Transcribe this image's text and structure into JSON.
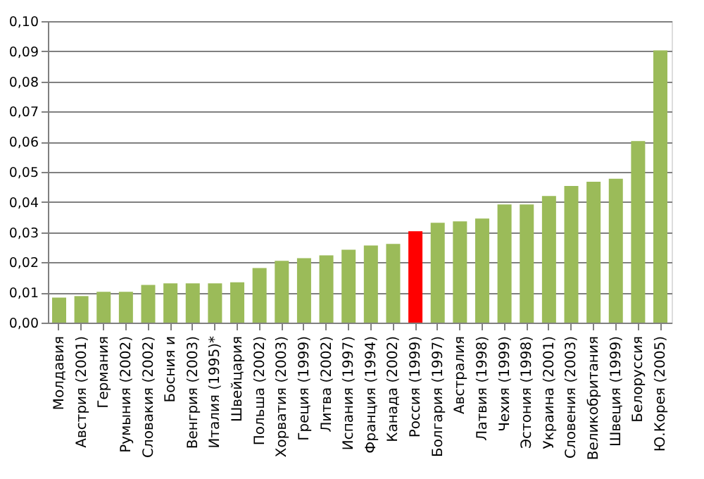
{
  "chart_data": {
    "type": "bar",
    "categories": [
      "Молдавия",
      "Австрия (2001)",
      "Германия",
      "Румыния (2002)",
      "Словакия (2002)",
      "Босния и",
      "Венгрия (2003)",
      "Италия (1995)*",
      "Швейцария",
      "Польша (2002)",
      "Хорватия (2003)",
      "Греция (1999)",
      "Литва (2002)",
      "Испания (1997)",
      "Франция (1994)",
      "Канада (2002)",
      "Россия (1999)",
      "Болгария (1997)",
      "Австралия",
      "Латвия (1998)",
      "Чехия (1999)",
      "Эстония (1998)",
      "Украина (2001)",
      "Словения (2003)",
      "Великобритания",
      "Швеция (1999)",
      "Белоруссия",
      "Ю.Корея (2005)"
    ],
    "values": [
      0.0083,
      0.0088,
      0.0102,
      0.0102,
      0.0125,
      0.013,
      0.013,
      0.013,
      0.0134,
      0.0181,
      0.0205,
      0.0214,
      0.0223,
      0.0242,
      0.0256,
      0.0261,
      0.0303,
      0.0331,
      0.0336,
      0.0345,
      0.0392,
      0.0392,
      0.042,
      0.0453,
      0.0467,
      0.0477,
      0.0602,
      0.0903
    ],
    "colors": [
      "#9bbb59",
      "#9bbb59",
      "#9bbb59",
      "#9bbb59",
      "#9bbb59",
      "#9bbb59",
      "#9bbb59",
      "#9bbb59",
      "#9bbb59",
      "#9bbb59",
      "#9bbb59",
      "#9bbb59",
      "#9bbb59",
      "#9bbb59",
      "#9bbb59",
      "#9bbb59",
      "#ff0000",
      "#9bbb59",
      "#9bbb59",
      "#9bbb59",
      "#9bbb59",
      "#9bbb59",
      "#9bbb59",
      "#9bbb59",
      "#9bbb59",
      "#9bbb59",
      "#9bbb59",
      "#9bbb59"
    ],
    "ylim": [
      0,
      0.1
    ],
    "yticks": [
      {
        "value": 0,
        "label": "0,00"
      },
      {
        "value": 0.01,
        "label": "0,01"
      },
      {
        "value": 0.02,
        "label": "0,02"
      },
      {
        "value": 0.03,
        "label": "0,03"
      },
      {
        "value": 0.04,
        "label": "0,04"
      },
      {
        "value": 0.05,
        "label": "0,05"
      },
      {
        "value": 0.06,
        "label": "0,06"
      },
      {
        "value": 0.07,
        "label": "0,07"
      },
      {
        "value": 0.08,
        "label": "0,08"
      },
      {
        "value": 0.09,
        "label": "0,09"
      },
      {
        "value": 0.1,
        "label": "0,10"
      }
    ],
    "grid": "y"
  }
}
